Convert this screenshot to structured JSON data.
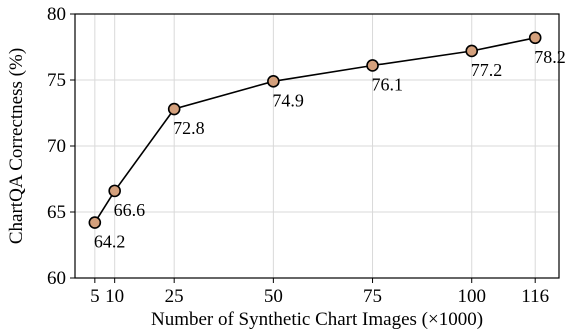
{
  "chart_data": {
    "type": "line",
    "title": "",
    "xlabel": "Number of Synthetic Chart Images (×1000)",
    "ylabel": "ChartQA Correctness (%)",
    "x": [
      5,
      10,
      25,
      50,
      75,
      100,
      116
    ],
    "x_tick_labels": [
      "5",
      "10",
      "25",
      "50",
      "75",
      "100",
      "116"
    ],
    "y_ticks": [
      60,
      65,
      70,
      75,
      80
    ],
    "y_tick_labels": [
      "60",
      "65",
      "70",
      "75",
      "80"
    ],
    "xlim": [
      0,
      122
    ],
    "ylim": [
      60,
      80
    ],
    "grid": true,
    "series": [
      {
        "values": [
          64.2,
          66.6,
          72.8,
          74.9,
          76.1,
          77.2,
          78.2
        ],
        "data_labels": [
          "64.2",
          "66.6",
          "72.8",
          "74.9",
          "76.1",
          "77.2",
          "78.2"
        ]
      }
    ],
    "colors": {
      "marker_fill": "#d4a07c",
      "line": "#000000",
      "grid": "#d9d9d9"
    }
  }
}
